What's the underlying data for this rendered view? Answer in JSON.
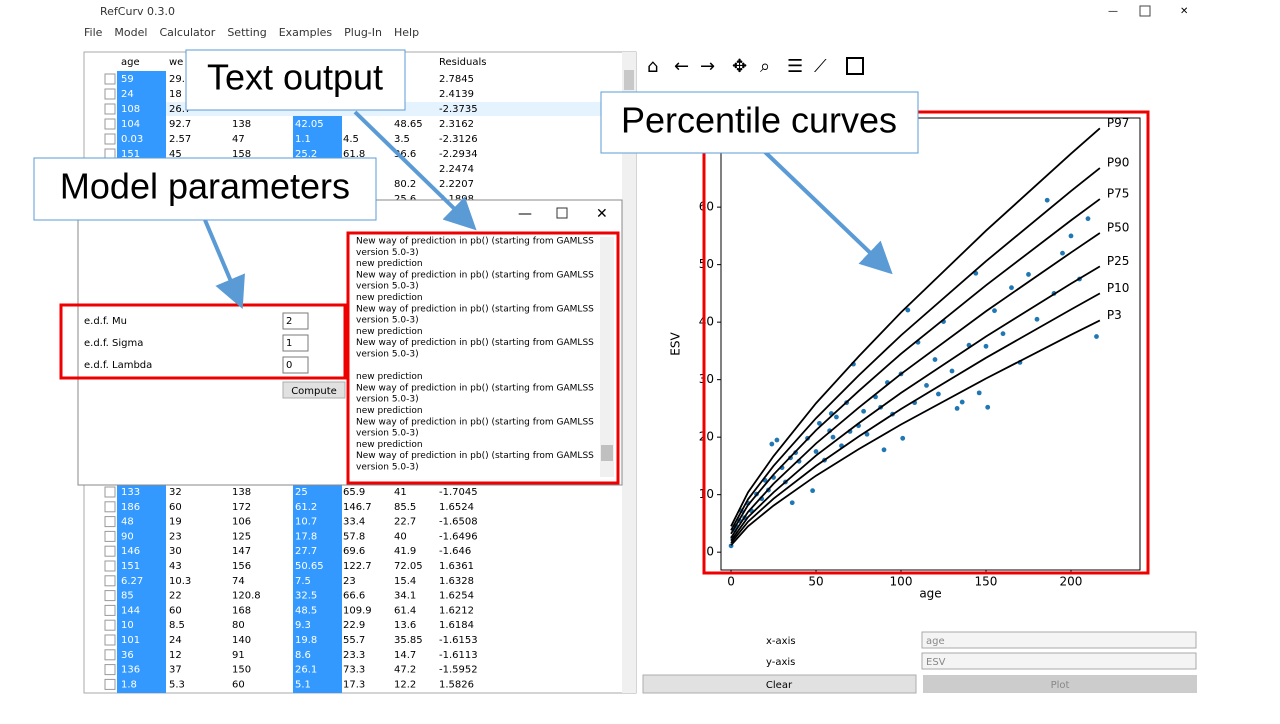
{
  "window": {
    "title": "RefCurv 0.3.0",
    "menu": [
      "File",
      "Model",
      "Calculator",
      "Setting",
      "Examples",
      "Plug-In",
      "Help"
    ]
  },
  "table": {
    "headers": [
      "age",
      "we",
      null,
      null,
      null,
      null,
      "Residuals"
    ],
    "rows_top": [
      [
        59,
        29.8,
        null,
        null,
        null,
        null,
        2.7845
      ],
      [
        24,
        18,
        null,
        null,
        null,
        null,
        2.4139
      ],
      [
        108,
        26.7,
        null,
        null,
        null,
        null,
        -2.3735
      ],
      [
        104,
        92.7,
        138,
        42.05,
        null,
        48.65,
        2.3162
      ],
      [
        0.03,
        2.57,
        47,
        1.1,
        4.5,
        3.5,
        -2.3126
      ],
      [
        151,
        45,
        158,
        25.2,
        61.8,
        36.6,
        -2.2934
      ],
      [
        null,
        null,
        null,
        null,
        null,
        null,
        2.2474
      ],
      [
        null,
        null,
        null,
        null,
        null,
        80.2,
        2.2207
      ],
      [
        null,
        null,
        null,
        null,
        null,
        25.6,
        2.1898
      ]
    ],
    "rows_bottom": [
      [
        133,
        32,
        138,
        25,
        65.9,
        41,
        -1.7045
      ],
      [
        186,
        60,
        172,
        61.2,
        146.7,
        85.5,
        1.6524
      ],
      [
        48,
        19,
        106,
        10.7,
        33.4,
        22.7,
        -1.6508
      ],
      [
        90,
        23,
        125,
        17.8,
        57.8,
        40,
        -1.6496
      ],
      [
        146,
        30,
        147,
        27.7,
        69.6,
        41.9,
        -1.646
      ],
      [
        151,
        43,
        156,
        50.65,
        122.7,
        72.05,
        1.6361
      ],
      [
        6.27,
        10.3,
        74,
        7.5,
        23,
        15.4,
        1.6328
      ],
      [
        85,
        22,
        120.8,
        32.5,
        66.6,
        34.1,
        1.6254
      ],
      [
        144,
        60,
        168,
        48.5,
        109.9,
        61.4,
        1.6212
      ],
      [
        10,
        8.5,
        80,
        9.3,
        22.9,
        13.6,
        1.6184
      ],
      [
        101,
        24,
        140,
        19.8,
        55.7,
        35.85,
        -1.6153
      ],
      [
        36,
        12,
        91,
        8.6,
        23.3,
        14.7,
        -1.6113
      ],
      [
        136,
        37,
        150,
        26.1,
        73.3,
        47.2,
        -1.5952
      ],
      [
        1.8,
        5.3,
        60,
        5.1,
        17.3,
        12.2,
        1.5826
      ]
    ]
  },
  "dialog": {
    "params": [
      {
        "label": "e.d.f. Mu",
        "value": 2
      },
      {
        "label": "e.d.f. Sigma",
        "value": 1
      },
      {
        "label": "e.d.f. Lambda",
        "value": 0
      }
    ],
    "compute": "Compute",
    "output": [
      "New way of prediction in pb()  (starting from GAMLSS",
      "version 5.0-3)",
      "new prediction",
      "New way of prediction in pb()  (starting from GAMLSS",
      "version 5.0-3)",
      "new prediction",
      "New way of prediction in pb()  (starting from GAMLSS",
      "version 5.0-3)",
      "new prediction",
      "New way of prediction in pb()  (starting from GAMLSS",
      "version 5.0-3)",
      null,
      "new prediction",
      "New way of prediction in pb()  (starting from GAMLSS",
      "version 5.0-3)",
      "new prediction",
      "New way of prediction in pb()  (starting from GAMLSS",
      "version 5.0-3)",
      "new prediction",
      "New way of prediction in pb()  (starting from GAMLSS",
      "version 5.0-3)"
    ]
  },
  "callouts": [
    "Text output",
    "Model parameters",
    "Percentile curves"
  ],
  "chart_data": {
    "type": "scatter",
    "x_label": "age",
    "y_label": "ESV",
    "xlim": [
      -5.9,
      240.6
    ],
    "ylim": [
      -3.1,
      75.5
    ],
    "xticks": [
      0,
      50,
      100,
      150,
      200
    ],
    "yticks": [
      0,
      10,
      20,
      30,
      40,
      50,
      60
    ],
    "color": "#1f77b4",
    "x": [
      0.03,
      1,
      2,
      3,
      5,
      6,
      8,
      10,
      12,
      15,
      18,
      20,
      22,
      24,
      25,
      27,
      30,
      32,
      35,
      36,
      38,
      40,
      45,
      48,
      50,
      52,
      55,
      58,
      59,
      60,
      62,
      65,
      68,
      70,
      72,
      75,
      78,
      80,
      85,
      88,
      90,
      92,
      95,
      100,
      101,
      104,
      108,
      110,
      115,
      120,
      122,
      125,
      130,
      133,
      136,
      140,
      144,
      146,
      150,
      151,
      155,
      160,
      165,
      170,
      175,
      180,
      186,
      190,
      195,
      200,
      205,
      210,
      215
    ],
    "values": [
      1.1,
      2.5,
      3.8,
      4.5,
      5.5,
      7.2,
      6.0,
      8.5,
      7.2,
      10.1,
      9.3,
      12.5,
      10.8,
      18.8,
      13.0,
      19.5,
      14.7,
      12.2,
      16.4,
      8.6,
      17.3,
      15.8,
      19.8,
      10.7,
      17.5,
      22.4,
      16.0,
      21.1,
      24.1,
      20.0,
      23.5,
      18.5,
      26.0,
      21.0,
      32.7,
      22.0,
      24.5,
      20.5,
      27.0,
      25.2,
      17.8,
      29.5,
      24.0,
      31.0,
      19.8,
      42.1,
      26.0,
      36.5,
      29.0,
      33.5,
      27.5,
      40.1,
      31.5,
      25.0,
      26.1,
      36.0,
      48.5,
      27.7,
      35.8,
      25.2,
      42.0,
      38.0,
      46.0,
      33.0,
      48.3,
      40.5,
      61.2,
      45.0,
      52.0,
      55.0,
      47.5,
      58.0,
      37.5
    ],
    "curve_x": [
      0,
      10,
      25,
      50,
      75,
      100,
      150,
      200,
      217
    ],
    "curves": [
      {
        "name": "P97",
        "values": [
          4.5,
          10.4,
          16.7,
          25.9,
          34.0,
          41.7,
          55.9,
          69.3,
          73.7
        ]
      },
      {
        "name": "P90",
        "values": [
          3.8,
          9.2,
          15.0,
          23.3,
          30.7,
          37.7,
          50.6,
          62.8,
          66.8
        ]
      },
      {
        "name": "P75",
        "values": [
          3.2,
          8.2,
          13.5,
          21.2,
          28.0,
          34.5,
          46.4,
          57.7,
          61.4
        ]
      },
      {
        "name": "P50",
        "values": [
          2.5,
          7.0,
          11.9,
          18.9,
          25.1,
          31.0,
          41.9,
          52.1,
          55.5
        ]
      },
      {
        "name": "P25",
        "values": [
          2.0,
          6.1,
          10.4,
          16.8,
          22.4,
          27.7,
          37.5,
          46.7,
          49.7
        ]
      },
      {
        "name": "P10",
        "values": [
          1.6,
          5.3,
          9.3,
          15.0,
          20.1,
          24.9,
          33.8,
          42.2,
          45.0
        ]
      },
      {
        "name": "P3",
        "values": [
          1.2,
          4.5,
          8.1,
          13.3,
          17.9,
          22.2,
          30.2,
          37.8,
          40.3
        ]
      }
    ]
  },
  "controls": {
    "x_axis_label": "x-axis",
    "x_axis_value": "age",
    "y_axis_label": "y-axis",
    "y_axis_value": "ESV",
    "clear": "Clear",
    "plot": "Plot"
  }
}
